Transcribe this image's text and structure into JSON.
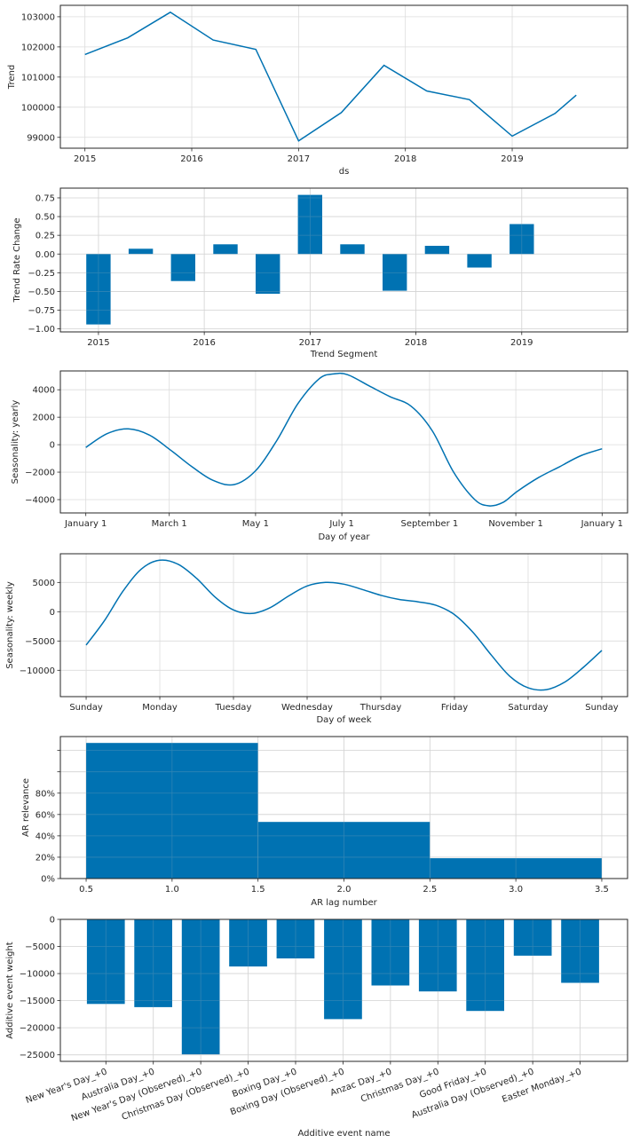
{
  "colors": {
    "series": "#0072b2",
    "grid": "#dcdcdc",
    "axis": "#262626"
  },
  "chart_data": [
    {
      "id": "trend",
      "type": "line",
      "title": "",
      "xlabel": "ds",
      "ylabel": "Trend",
      "x": [
        2015.0,
        2015.4,
        2015.8,
        2016.2,
        2016.6,
        2017.0,
        2017.4,
        2017.8,
        2018.2,
        2018.6,
        2019.0,
        2019.4,
        2019.6
      ],
      "series": [
        {
          "name": "Trend",
          "values": [
            101750,
            102300,
            103150,
            102230,
            101920,
            98880,
            99820,
            101390,
            100540,
            100250,
            99040,
            99790,
            100400
          ]
        }
      ],
      "xticks": [
        2015,
        2016,
        2017,
        2018,
        2019
      ],
      "xtick_labels": [
        "2015",
        "2016",
        "2017",
        "2018",
        "2019"
      ],
      "yticks": [
        99000,
        100000,
        101000,
        102000,
        103000
      ],
      "ytick_labels": [
        "99000",
        "100000",
        "101000",
        "102000",
        "103000"
      ],
      "xlim": [
        2014.77,
        2020.08
      ],
      "ylim": [
        98640,
        103380
      ],
      "grid": true
    },
    {
      "id": "trend-rate-change",
      "type": "bar",
      "title": "",
      "xlabel": "Trend Segment",
      "ylabel": "Trend Rate Change",
      "x": [
        2015.0,
        2015.4,
        2015.8,
        2016.2,
        2016.6,
        2017.0,
        2017.4,
        2017.8,
        2018.2,
        2018.6,
        2019.0
      ],
      "values": [
        -0.94,
        0.07,
        -0.36,
        0.13,
        -0.53,
        0.79,
        0.13,
        -0.49,
        0.11,
        -0.18,
        0.4
      ],
      "bar_width": 0.23,
      "xticks": [
        2015,
        2016,
        2017,
        2018,
        2019
      ],
      "xtick_labels": [
        "2015",
        "2016",
        "2017",
        "2018",
        "2019"
      ],
      "yticks": [
        -1.0,
        -0.75,
        -0.5,
        -0.25,
        0.0,
        0.25,
        0.5,
        0.75
      ],
      "ytick_labels": [
        "−1.00",
        "−0.75",
        "−0.50",
        "−0.25",
        "0.00",
        "0.25",
        "0.50",
        "0.75"
      ],
      "xlim": [
        2014.64,
        2020.0
      ],
      "ylim": [
        -1.04,
        0.88
      ],
      "grid": true
    },
    {
      "id": "seasonality-yearly",
      "type": "line",
      "title": "",
      "xlabel": "Day of year",
      "ylabel": "Seasonality: yearly",
      "x": [
        0,
        15,
        30,
        45,
        60,
        75,
        90,
        105,
        120,
        135,
        150,
        165,
        175,
        185,
        200,
        215,
        230,
        245,
        260,
        275,
        285,
        295,
        305,
        320,
        335,
        350,
        365
      ],
      "series": [
        {
          "name": "yearly",
          "values": [
            -200,
            800,
            1150,
            700,
            -400,
            -1600,
            -2600,
            -2900,
            -1900,
            300,
            3000,
            4800,
            5150,
            5100,
            4300,
            3500,
            2800,
            1000,
            -2000,
            -4000,
            -4450,
            -4200,
            -3400,
            -2400,
            -1600,
            -800,
            -300
          ]
        }
      ],
      "xticks": [
        0,
        59,
        120,
        181,
        243,
        304,
        365
      ],
      "xtick_labels": [
        "January 1",
        "March 1",
        "May 1",
        "July 1",
        "September 1",
        "November 1",
        "January 1"
      ],
      "yticks": [
        -4000,
        -2000,
        0,
        2000,
        4000
      ],
      "ytick_labels": [
        "−4000",
        "−2000",
        "0",
        "2000",
        "4000"
      ],
      "xlim": [
        -18,
        383
      ],
      "ylim": [
        -4970,
        5370
      ],
      "grid": true
    },
    {
      "id": "seasonality-weekly",
      "type": "line",
      "title": "",
      "xlabel": "Day of week",
      "ylabel": "Seasonality: weekly",
      "x": [
        0,
        0.25,
        0.5,
        0.75,
        1.0,
        1.25,
        1.5,
        1.75,
        2.0,
        2.25,
        2.5,
        2.75,
        3.0,
        3.25,
        3.5,
        3.75,
        4.0,
        4.25,
        4.5,
        4.75,
        5.0,
        5.25,
        5.5,
        5.75,
        6.0,
        6.25,
        6.5,
        6.75,
        7.0
      ],
      "series": [
        {
          "name": "weekly",
          "values": [
            -5700,
            -1500,
            3500,
            7300,
            8800,
            8100,
            5700,
            2500,
            300,
            -300,
            700,
            2700,
            4400,
            5000,
            4700,
            3800,
            2800,
            2100,
            1700,
            1100,
            -500,
            -3500,
            -7400,
            -11000,
            -13000,
            -13300,
            -12000,
            -9500,
            -6600
          ]
        }
      ],
      "xticks": [
        0,
        1,
        2,
        3,
        4,
        5,
        6,
        7
      ],
      "xtick_labels": [
        "Sunday",
        "Monday",
        "Tuesday",
        "Wednesday",
        "Thursday",
        "Friday",
        "Saturday",
        "Sunday"
      ],
      "yticks": [
        -10000,
        -5000,
        0,
        5000
      ],
      "ytick_labels": [
        "−10000",
        "−5000",
        "0",
        "5000"
      ],
      "xlim": [
        -0.35,
        7.35
      ],
      "ylim": [
        -14500,
        9900
      ],
      "grid": true
    },
    {
      "id": "ar-relevance",
      "type": "bar",
      "title": "",
      "xlabel": "AR lag number",
      "ylabel": "AR relevance",
      "categories": [
        "1",
        "2",
        "3"
      ],
      "x": [
        1.0,
        2.0,
        3.0
      ],
      "values": [
        1.27,
        0.53,
        0.19
      ],
      "value_format": "percent",
      "bar_width": 1.0,
      "xticks": [
        0.5,
        1.0,
        1.5,
        2.0,
        2.5,
        3.0,
        3.5
      ],
      "xtick_labels": [
        "0.5",
        "1.0",
        "1.5",
        "2.0",
        "2.5",
        "3.0",
        "3.5"
      ],
      "yticks": [
        0,
        0.2,
        0.4,
        0.6,
        0.8,
        1.0,
        1.2
      ],
      "ytick_labels": [
        "0%",
        "20%",
        "40%",
        "60%",
        "80%",
        "",
        ""
      ],
      "xlim": [
        0.35,
        3.65
      ],
      "ylim": [
        0,
        1.33
      ],
      "grid": true
    },
    {
      "id": "additive-events",
      "type": "bar",
      "title": "",
      "xlabel": "Additive event name",
      "ylabel": "Additive event weight",
      "categories": [
        "New Year's Day_+0",
        "Australia Day_+0",
        "New Year's Day (Observed)_+0",
        "Christmas Day (Observed)_+0",
        "Boxing Day_+0",
        "Boxing Day (Observed)_+0",
        "Anzac Day_+0",
        "Christmas Day_+0",
        "Good Friday_+0",
        "Australia Day (Observed)_+0",
        "Easter Monday_+0"
      ],
      "values": [
        -15600,
        -16200,
        -24900,
        -8700,
        -7200,
        -18400,
        -12200,
        -13300,
        -16900,
        -6700,
        -11700
      ],
      "bar_width": 0.8,
      "yticks": [
        -25000,
        -20000,
        -15000,
        -10000,
        -5000,
        0
      ],
      "ytick_labels": [
        "−25000",
        "−20000",
        "−15000",
        "−10000",
        "−5000",
        "0"
      ],
      "xlim": [
        -0.96,
        11.0
      ],
      "ylim": [
        -26200,
        0
      ],
      "grid": true
    }
  ]
}
